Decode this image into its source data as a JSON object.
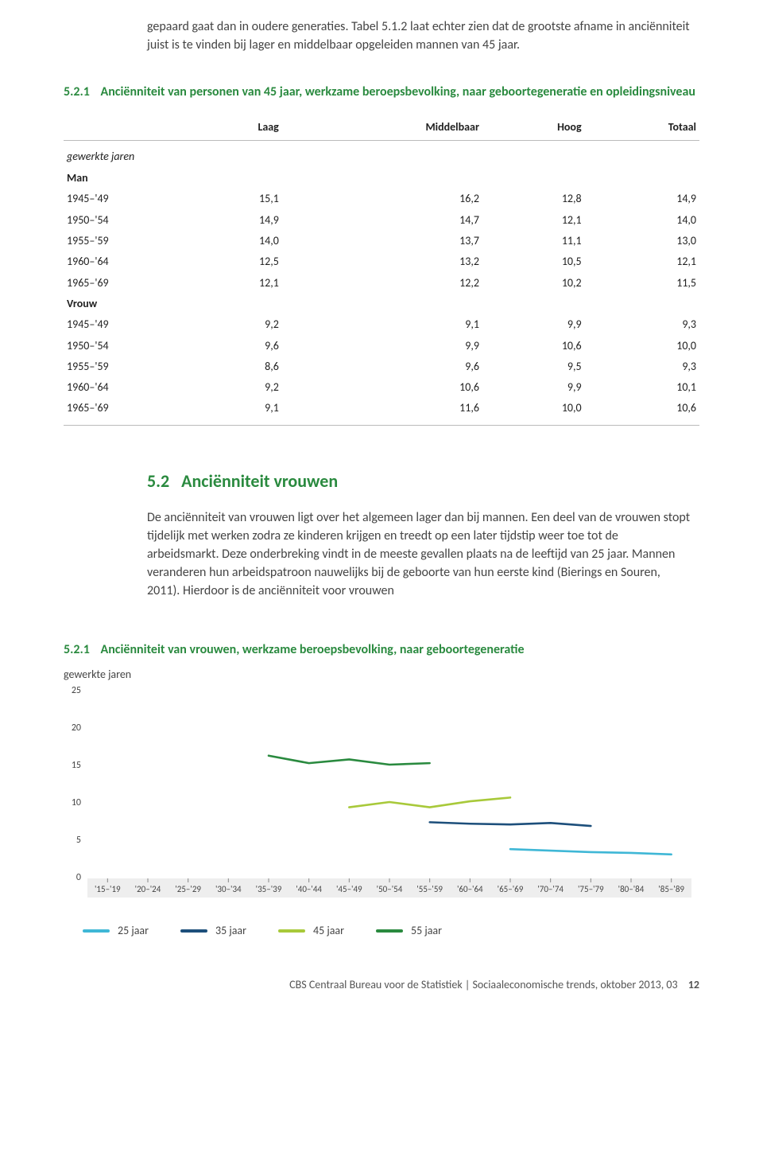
{
  "intro_paragraph": "gepaard gaat dan in oudere generaties. Tabel 5.1.2 laat echter zien dat de grootste afname in anciënniteit juist is te vinden bij lager en middelbaar opgeleiden mannen van 45 jaar.",
  "table": {
    "number": "5.2.1",
    "title": "Anciënniteit van personen van 45 jaar, werkzame beroepsbevolking, naar geboortegeneratie en opleidingsniveau",
    "columns": [
      "Laag",
      "Middelbaar",
      "Hoog",
      "Totaal"
    ],
    "subhead": "gewerkte jaren",
    "groups": [
      {
        "label": "Man",
        "rows": [
          {
            "label": "1945–'49",
            "values": [
              "15,1",
              "16,2",
              "12,8",
              "14,9"
            ]
          },
          {
            "label": "1950–'54",
            "values": [
              "14,9",
              "14,7",
              "12,1",
              "14,0"
            ]
          },
          {
            "label": "1955–'59",
            "values": [
              "14,0",
              "13,7",
              "11,1",
              "13,0"
            ]
          },
          {
            "label": "1960–'64",
            "values": [
              "12,5",
              "13,2",
              "10,5",
              "12,1"
            ]
          },
          {
            "label": "1965–'69",
            "values": [
              "12,1",
              "12,2",
              "10,2",
              "11,5"
            ]
          }
        ]
      },
      {
        "label": "Vrouw",
        "rows": [
          {
            "label": "1945–'49",
            "values": [
              "9,2",
              "9,1",
              "9,9",
              "9,3"
            ]
          },
          {
            "label": "1950–'54",
            "values": [
              "9,6",
              "9,9",
              "10,6",
              "10,0"
            ]
          },
          {
            "label": "1955–'59",
            "values": [
              "8,6",
              "9,6",
              "9,5",
              "9,3"
            ]
          },
          {
            "label": "1960–'64",
            "values": [
              "9,2",
              "10,6",
              "9,9",
              "10,1"
            ]
          },
          {
            "label": "1965–'69",
            "values": [
              "9,1",
              "11,6",
              "10,0",
              "10,6"
            ]
          }
        ]
      }
    ]
  },
  "section": {
    "number": "5.2",
    "title": "Anciënniteit vrouwen",
    "body": "De anciënniteit van vrouwen ligt over het algemeen lager dan bij mannen. Een deel van de vrouwen stopt tijdelijk met werken zodra ze kinderen krijgen en treedt op een later tijdstip weer toe tot de arbeidsmarkt. Deze onderbreking vindt in de meeste gevallen plaats na de leeftijd van 25 jaar. Mannen veranderen hun arbeidspatroon nauwelijks bij de geboorte van hun eerste kind (Bierings en Souren, 2011). Hierdoor is de anciënniteit voor vrouwen"
  },
  "chart": {
    "number": "5.2.1",
    "title": "Anciënniteit van vrouwen, werkzame beroepsbevolking, naar geboortegeneratie",
    "y_label": "gewerkte jaren",
    "ylim": [
      0,
      25
    ],
    "ytick_step": 5,
    "yticks": [
      "0",
      "5",
      "10",
      "15",
      "20",
      "25"
    ],
    "x_categories": [
      "'15–'19",
      "'20–'24",
      "'25–'29",
      "'30–'34",
      "'35–'39",
      "'40–'44",
      "'45–'49",
      "'50–'54",
      "'55–'59",
      "'60–'64",
      "'65–'69",
      "'70–'74",
      "'75–'79",
      "'80–'84",
      "'85–'89"
    ],
    "background_color": "#ffffff",
    "axis_band_color": "#eeeeee",
    "tick_color": "#888888",
    "text_color": "#444444",
    "label_fontsize": 12,
    "line_width": 2.6,
    "series": [
      {
        "name": "55 jaar",
        "color": "#2a8a3f",
        "data": [
          {
            "xi": 4,
            "y": 16.2
          },
          {
            "xi": 5,
            "y": 15.2
          },
          {
            "xi": 6,
            "y": 15.7
          },
          {
            "xi": 7,
            "y": 15.0
          },
          {
            "xi": 8,
            "y": 15.2
          }
        ]
      },
      {
        "name": "45 jaar",
        "color": "#a8c93a",
        "data": [
          {
            "xi": 6,
            "y": 9.3
          },
          {
            "xi": 7,
            "y": 10.0
          },
          {
            "xi": 8,
            "y": 9.3
          },
          {
            "xi": 9,
            "y": 10.1
          },
          {
            "xi": 10,
            "y": 10.6
          }
        ]
      },
      {
        "name": "35 jaar",
        "color": "#1d4f7b",
        "data": [
          {
            "xi": 8,
            "y": 7.3
          },
          {
            "xi": 9,
            "y": 7.1
          },
          {
            "xi": 10,
            "y": 7.0
          },
          {
            "xi": 11,
            "y": 7.2
          },
          {
            "xi": 12,
            "y": 6.8
          }
        ]
      },
      {
        "name": "25 jaar",
        "color": "#3fb7d6",
        "data": [
          {
            "xi": 10,
            "y": 3.7
          },
          {
            "xi": 11,
            "y": 3.5
          },
          {
            "xi": 12,
            "y": 3.3
          },
          {
            "xi": 13,
            "y": 3.2
          },
          {
            "xi": 14,
            "y": 3.0
          }
        ]
      }
    ],
    "legend_order": [
      "25 jaar",
      "35 jaar",
      "45 jaar",
      "55 jaar"
    ],
    "legend_colors": {
      "25 jaar": "#3fb7d6",
      "35 jaar": "#1d4f7b",
      "45 jaar": "#a8c93a",
      "55 jaar": "#2a8a3f"
    }
  },
  "footer": {
    "text": "CBS Centraal Bureau voor de Statistiek | Sociaaleconomische trends, oktober 2013, 03",
    "page": "12"
  }
}
